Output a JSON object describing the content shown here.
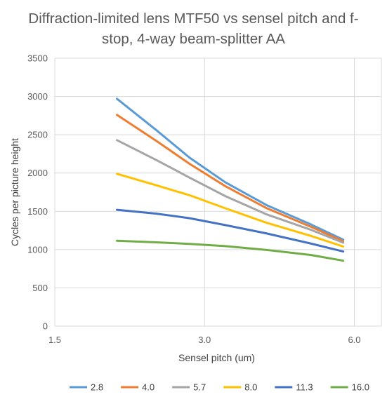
{
  "chart_data": {
    "type": "line",
    "title": "Diffraction-limited lens MTF50 vs sensel pitch and f-stop, 4-way beam-splitter AA",
    "xlabel": "Sensel pitch (um)",
    "ylabel": "Cycles per picture height",
    "x_scale": "log",
    "xlim": [
      1.5,
      6.8
    ],
    "ylim": [
      0,
      3500
    ],
    "x_ticks": [
      1.5,
      3.0,
      6.0
    ],
    "x_tick_labels": [
      "1.5",
      "3.0",
      "6.0"
    ],
    "y_ticks": [
      0,
      500,
      1000,
      1500,
      2000,
      2500,
      3000,
      3500
    ],
    "y_tick_labels": [
      "0",
      "500",
      "1000",
      "1500",
      "2000",
      "2500",
      "3000",
      "3500"
    ],
    "grid": true,
    "legend_position": "bottom",
    "x": [
      2.0,
      2.4,
      2.8,
      3.3,
      4.0,
      4.9,
      5.7
    ],
    "series": [
      {
        "name": "2.8",
        "color": "#5B9BD5",
        "values": [
          2970,
          2560,
          2200,
          1880,
          1580,
          1330,
          1130
        ]
      },
      {
        "name": "4.0",
        "color": "#ED7D31",
        "values": [
          2760,
          2420,
          2120,
          1830,
          1540,
          1300,
          1110
        ]
      },
      {
        "name": "5.7",
        "color": "#A5A5A5",
        "values": [
          2430,
          2170,
          1940,
          1700,
          1460,
          1260,
          1090
        ]
      },
      {
        "name": "8.0",
        "color": "#FFC000",
        "values": [
          1990,
          1840,
          1710,
          1540,
          1350,
          1180,
          1040
        ]
      },
      {
        "name": "11.3",
        "color": "#4472C4",
        "values": [
          1520,
          1470,
          1410,
          1320,
          1210,
          1080,
          975
        ]
      },
      {
        "name": "16.0",
        "color": "#70AD47",
        "values": [
          1115,
          1095,
          1075,
          1045,
          995,
          930,
          855
        ]
      }
    ]
  }
}
